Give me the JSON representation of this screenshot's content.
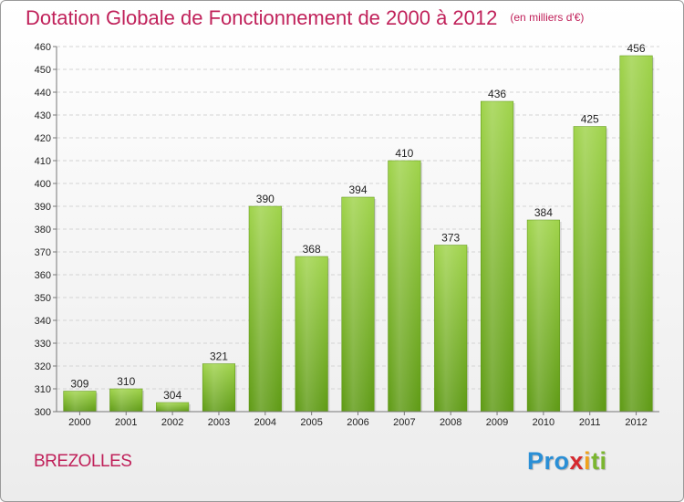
{
  "chart_data": {
    "type": "bar",
    "title": "Dotation Globale de Fonctionnement de 2000 à 2012",
    "subtitle": "(en milliers d'€)",
    "xlabel": "",
    "ylabel": "",
    "categories": [
      "2000",
      "2001",
      "2002",
      "2003",
      "2004",
      "2005",
      "2006",
      "2007",
      "2008",
      "2009",
      "2010",
      "2011",
      "2012"
    ],
    "values": [
      309,
      310,
      304,
      321,
      390,
      368,
      394,
      410,
      373,
      436,
      384,
      425,
      456
    ],
    "ylim": [
      300,
      460
    ],
    "yticks": [
      300,
      310,
      320,
      330,
      340,
      350,
      360,
      370,
      380,
      390,
      400,
      410,
      420,
      430,
      440,
      450,
      460
    ],
    "grid": true,
    "bar_color": "#7cb82f"
  },
  "commune": "BREZOLLES",
  "logo": {
    "p1": "Pro",
    "p2": "x",
    "p3": "i",
    "p4": "ti"
  }
}
